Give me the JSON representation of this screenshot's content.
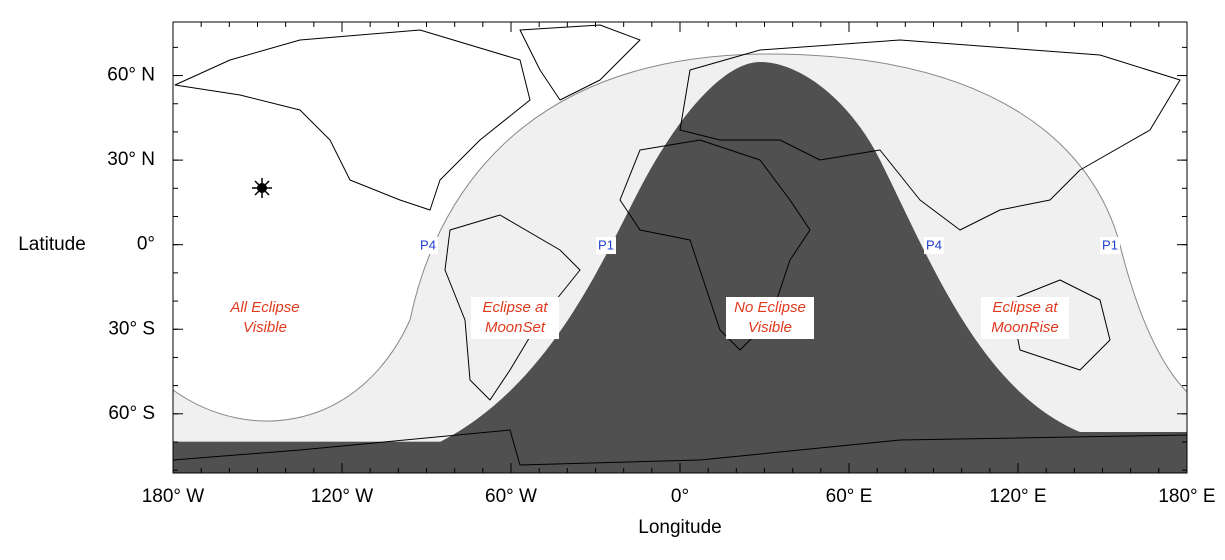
{
  "map": {
    "x_label": "Longitude",
    "y_label": "Latitude",
    "xlim": [
      -180,
      180
    ],
    "ylim": [
      -81,
      79
    ],
    "xticks": [
      {
        "value": -180,
        "label": "180° W"
      },
      {
        "value": -120,
        "label": "120° W"
      },
      {
        "value": -60,
        "label": "60° W"
      },
      {
        "value": 0,
        "label": "0°"
      },
      {
        "value": 60,
        "label": "60° E"
      },
      {
        "value": 120,
        "label": "120° E"
      },
      {
        "value": 180,
        "label": "180° E"
      }
    ],
    "yticks": [
      {
        "value": 60,
        "label": "60° N"
      },
      {
        "value": 30,
        "label": "30° N"
      },
      {
        "value": 0,
        "label": "0°"
      },
      {
        "value": -30,
        "label": "30° S"
      },
      {
        "value": -60,
        "label": "60° S"
      }
    ],
    "regions": [
      {
        "lines": [
          "All Eclipse",
          "Visible"
        ]
      },
      {
        "lines": [
          "Eclipse at",
          "MoonSet"
        ]
      },
      {
        "lines": [
          "No Eclipse",
          "Visible"
        ]
      },
      {
        "lines": [
          "Eclipse at",
          "MoonRise"
        ]
      }
    ],
    "contacts": [
      "P4",
      "P1",
      "P4",
      "P1"
    ]
  }
}
